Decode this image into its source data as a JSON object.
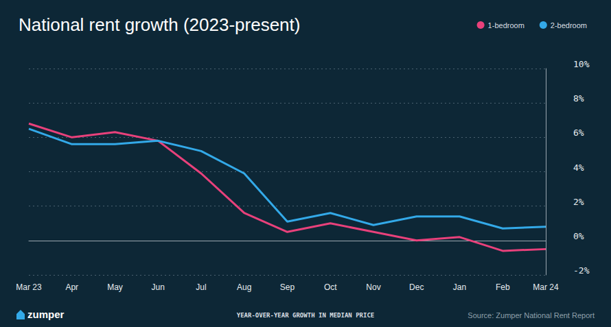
{
  "chart_data": {
    "type": "line",
    "title": "National rent growth (2023-present)",
    "xlabel": "YEAR-OVER-YEAR GROWTH IN MEDIAN PRICE",
    "annotations": [
      "zumper",
      "Source: Zumper National Rent Report"
    ],
    "categories": [
      "Mar 23",
      "Apr",
      "May",
      "Jun",
      "Jul",
      "Aug",
      "Sep",
      "Oct",
      "Nov",
      "Dec",
      "Jan",
      "Feb",
      "Mar 24"
    ],
    "series": [
      {
        "name": "1-bedroom",
        "color": "#e8417b",
        "values": [
          6.8,
          6.0,
          6.3,
          5.8,
          3.9,
          1.6,
          0.5,
          1.0,
          0.5,
          0.0,
          0.2,
          -0.6,
          -0.5
        ]
      },
      {
        "name": "2-bedroom",
        "color": "#33a9e8",
        "values": [
          6.5,
          5.6,
          5.6,
          5.8,
          5.2,
          3.9,
          1.1,
          1.6,
          0.9,
          1.4,
          1.4,
          0.7,
          0.8
        ]
      }
    ],
    "ylim": [
      -2,
      10
    ],
    "yticks": [
      {
        "value": -2,
        "label": "-2%"
      },
      {
        "value": 0,
        "label": "0%"
      },
      {
        "value": 2,
        "label": "2%"
      },
      {
        "value": 4,
        "label": "4%"
      },
      {
        "value": 6,
        "label": "6%"
      },
      {
        "value": 8,
        "label": "8%"
      },
      {
        "value": 10,
        "label": "10%"
      }
    ],
    "grid": true,
    "legend": "top-right"
  }
}
